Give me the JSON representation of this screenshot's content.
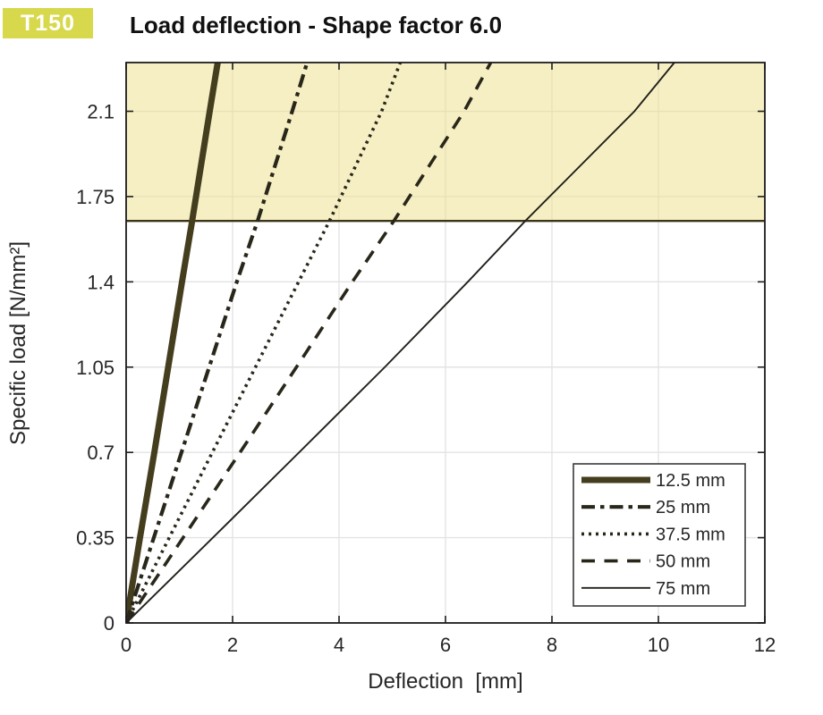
{
  "badge": {
    "label": "T150",
    "bg_color": "#d7d84b",
    "text_color": "#ffffff"
  },
  "header": {
    "title": "Load deflection - Shape factor 6.0"
  },
  "chart_data": {
    "type": "line",
    "title": "Load deflection - Shape factor 6.0",
    "xlabel": "Deflection  [mm]",
    "ylabel": "Specific load [N/mm²]",
    "xlim": [
      0,
      12
    ],
    "ylim": [
      0,
      2.3
    ],
    "xticks": [
      0,
      2,
      4,
      6,
      8,
      10,
      12
    ],
    "yticks": [
      0,
      0.35,
      0.7,
      1.05,
      1.4,
      1.75,
      2.1
    ],
    "grid": true,
    "grid_color": "#e3e3e3",
    "axis_color": "#1c1c1c",
    "legend_position": "lower right",
    "overload_band": {
      "y_from": 1.65,
      "y_to": 2.3,
      "fill": "rgba(240,224,138,0.5)",
      "edge_color": "#3a3518"
    },
    "series": [
      {
        "name": "12.5 mm",
        "line_style": "solid",
        "line_width": 7,
        "color": "#443e1f",
        "points": [
          [
            0,
            0
          ],
          [
            0.26,
            0.35
          ],
          [
            0.53,
            0.7
          ],
          [
            0.79,
            1.05
          ],
          [
            1.05,
            1.4
          ],
          [
            1.24,
            1.65
          ],
          [
            1.57,
            2.1
          ],
          [
            1.72,
            2.3
          ]
        ]
      },
      {
        "name": "25 mm",
        "line_style": "dashdot",
        "line_width": 4.2,
        "color": "#29271a",
        "points": [
          [
            0,
            0
          ],
          [
            0.52,
            0.35
          ],
          [
            1.04,
            0.7
          ],
          [
            1.56,
            1.05
          ],
          [
            2.08,
            1.4
          ],
          [
            2.47,
            1.65
          ],
          [
            3.12,
            2.1
          ],
          [
            3.4,
            2.3
          ]
        ]
      },
      {
        "name": "37.5 mm",
        "line_style": "dotted",
        "line_width": 3.6,
        "color": "#29271a",
        "points": [
          [
            0,
            0
          ],
          [
            0.81,
            0.35
          ],
          [
            1.62,
            0.7
          ],
          [
            2.43,
            1.05
          ],
          [
            3.24,
            1.4
          ],
          [
            3.82,
            1.65
          ],
          [
            4.8,
            2.1
          ],
          [
            5.15,
            2.3
          ]
        ]
      },
      {
        "name": "50 mm",
        "line_style": "dashed",
        "line_width": 3.6,
        "color": "#29271a",
        "points": [
          [
            0,
            0
          ],
          [
            1.07,
            0.35
          ],
          [
            2.14,
            0.7
          ],
          [
            3.2,
            1.05
          ],
          [
            4.25,
            1.4
          ],
          [
            5.03,
            1.65
          ],
          [
            6.35,
            2.1
          ],
          [
            6.85,
            2.3
          ]
        ]
      },
      {
        "name": "75 mm",
        "line_style": "solid",
        "line_width": 1.9,
        "color": "#21201a",
        "points": [
          [
            0,
            0
          ],
          [
            1.63,
            0.35
          ],
          [
            3.25,
            0.7
          ],
          [
            4.86,
            1.05
          ],
          [
            6.42,
            1.4
          ],
          [
            7.5,
            1.65
          ],
          [
            9.55,
            2.1
          ],
          [
            10.3,
            2.3
          ]
        ]
      }
    ]
  }
}
